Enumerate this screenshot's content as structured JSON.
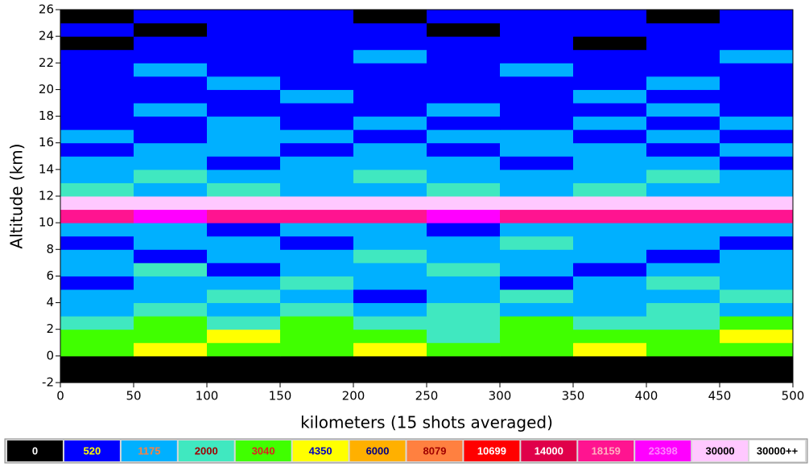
{
  "chart_data": {
    "type": "heatmap",
    "x_label": "kilometers (15 shots averaged)",
    "y_label": "Altitude (km)",
    "xlim": [
      0,
      500
    ],
    "ylim": [
      -2,
      26
    ],
    "xticks": [
      0,
      50,
      100,
      150,
      200,
      250,
      300,
      350,
      400,
      450,
      500
    ],
    "yticks": [
      -2,
      0,
      2,
      4,
      6,
      8,
      10,
      12,
      14,
      16,
      18,
      20,
      22,
      24,
      26
    ],
    "x_bins": [
      0,
      50,
      100,
      150,
      200,
      250,
      300,
      350,
      400,
      450,
      500
    ],
    "y_bins": [
      -2,
      -1,
      0,
      1,
      2,
      3,
      4,
      5,
      6,
      7,
      8,
      9,
      10,
      11,
      12,
      13,
      14,
      15,
      16,
      17,
      18,
      19,
      20,
      21,
      22,
      23,
      24,
      25,
      26
    ],
    "values": [
      [
        0,
        0,
        0,
        0,
        0,
        0,
        0,
        0,
        0,
        0
      ],
      [
        0,
        0,
        0,
        0,
        0,
        0,
        0,
        0,
        0,
        0
      ],
      [
        3040,
        4350,
        3040,
        3040,
        4350,
        3040,
        3040,
        4350,
        3040,
        3040
      ],
      [
        3040,
        3040,
        4350,
        3040,
        3040,
        2000,
        3040,
        3040,
        3040,
        4350
      ],
      [
        2000,
        3040,
        2000,
        3040,
        2000,
        2000,
        3040,
        2000,
        2000,
        3040
      ],
      [
        1175,
        2000,
        1175,
        2000,
        1175,
        2000,
        1175,
        1175,
        2000,
        1175
      ],
      [
        1175,
        1175,
        2000,
        1175,
        520,
        1175,
        2000,
        1175,
        1175,
        2000
      ],
      [
        520,
        1175,
        1175,
        2000,
        1175,
        1175,
        520,
        1175,
        2000,
        1175
      ],
      [
        1175,
        2000,
        520,
        1175,
        1175,
        2000,
        1175,
        520,
        1175,
        1175
      ],
      [
        1175,
        520,
        1175,
        1175,
        2000,
        1175,
        1175,
        1175,
        520,
        1175
      ],
      [
        520,
        1175,
        1175,
        520,
        1175,
        1175,
        2000,
        1175,
        1175,
        520
      ],
      [
        1175,
        1175,
        520,
        1175,
        1175,
        520,
        1175,
        1175,
        1175,
        1175
      ],
      [
        18159,
        23398,
        18159,
        18159,
        18159,
        23398,
        18159,
        18159,
        18159,
        18159
      ],
      [
        30000,
        30000,
        30000,
        30000,
        30000,
        30000,
        30000,
        30000,
        30000,
        30000
      ],
      [
        2000,
        1175,
        2000,
        1175,
        1175,
        2000,
        1175,
        2000,
        1175,
        1175
      ],
      [
        1175,
        2000,
        1175,
        1175,
        2000,
        1175,
        1175,
        1175,
        2000,
        1175
      ],
      [
        1175,
        1175,
        520,
        1175,
        1175,
        1175,
        520,
        1175,
        1175,
        520
      ],
      [
        520,
        1175,
        1175,
        520,
        1175,
        520,
        1175,
        1175,
        520,
        1175
      ],
      [
        1175,
        520,
        1175,
        1175,
        520,
        1175,
        1175,
        520,
        1175,
        520
      ],
      [
        520,
        520,
        1175,
        520,
        1175,
        520,
        520,
        1175,
        520,
        1175
      ],
      [
        520,
        1175,
        520,
        520,
        520,
        1175,
        520,
        520,
        1175,
        520
      ],
      [
        520,
        520,
        520,
        1175,
        520,
        520,
        520,
        1175,
        520,
        520
      ],
      [
        520,
        520,
        1175,
        520,
        520,
        520,
        520,
        520,
        1175,
        520
      ],
      [
        520,
        1175,
        520,
        520,
        520,
        520,
        1175,
        520,
        520,
        520
      ],
      [
        520,
        520,
        520,
        520,
        1175,
        520,
        520,
        520,
        520,
        1175
      ],
      [
        0,
        520,
        520,
        520,
        520,
        520,
        520,
        0,
        520,
        520
      ],
      [
        520,
        0,
        520,
        520,
        520,
        0,
        520,
        520,
        520,
        520
      ],
      [
        0,
        520,
        520,
        520,
        0,
        520,
        520,
        520,
        0,
        520
      ]
    ],
    "colorbar": {
      "levels": [
        0,
        520,
        1175,
        2000,
        3040,
        4350,
        6000,
        8079,
        10699,
        14000,
        18159,
        23398,
        30000,
        {
          "value": 30000,
          "label": "30000++"
        }
      ],
      "colors": [
        "#000000",
        "#0000ff",
        "#00b0ff",
        "#40e8c0",
        "#40ff00",
        "#ffff00",
        "#ffb000",
        "#ff8040",
        "#ff0000",
        "#e0004a",
        "#ff1490",
        "#ff00ff",
        "#ffc8ff",
        "#ffffff"
      ],
      "text_colors": [
        "#ffffff",
        "#ffff00",
        "#ff8040",
        "#a00000",
        "#e02020",
        "#0000c0",
        "#000080",
        "#a00000",
        "#ffffff",
        "#ffffff",
        "#ffb0c0",
        "#ff80ff",
        "#000000",
        "#000000"
      ]
    }
  }
}
